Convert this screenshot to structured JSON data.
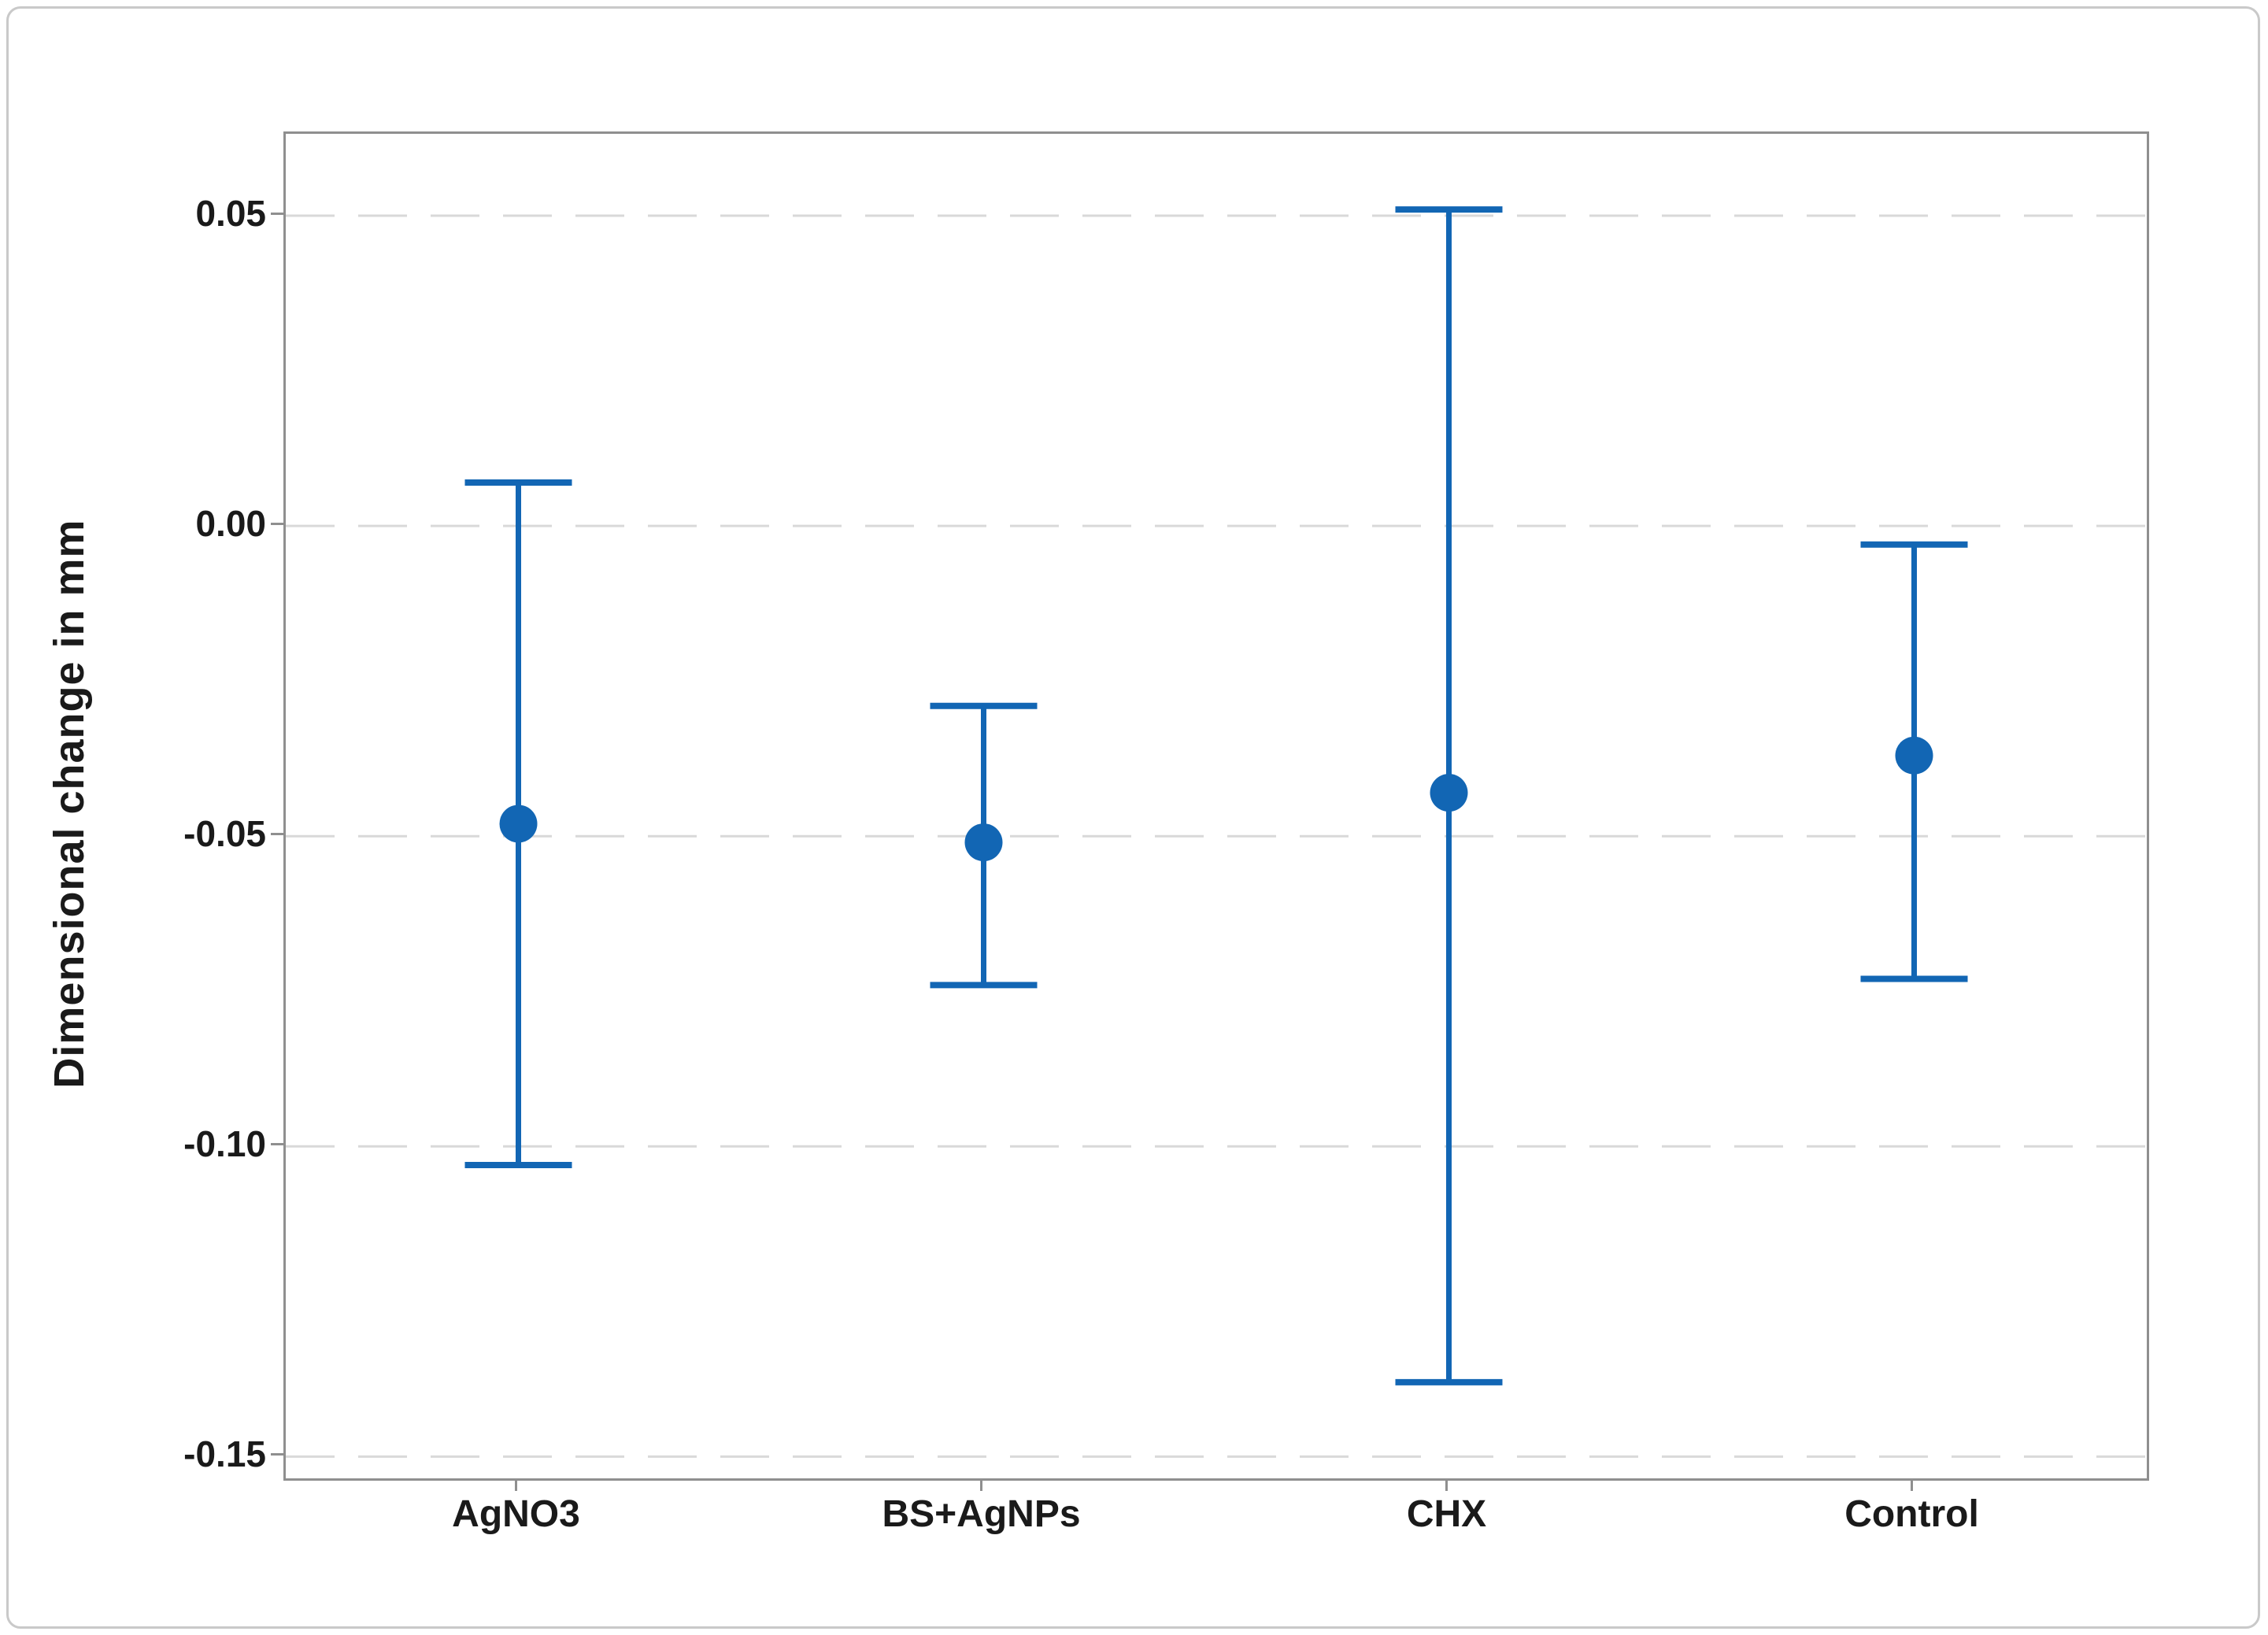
{
  "figure": {
    "colors": {
      "series": "#1266b4",
      "gridline": "#d9d9d9",
      "frame": "#8f8f8f",
      "text": "#1a1a1a",
      "outer_border": "#c9c9c9"
    }
  },
  "chart_data": {
    "type": "scatter",
    "subtype": "interval-plot-with-error-bars",
    "title": "",
    "xlabel": "",
    "ylabel": "Dimensional change in mm",
    "categories": [
      "AgNO3",
      "BS+AgNPs",
      "CHX",
      "Control"
    ],
    "means": [
      -0.048,
      -0.051,
      -0.043,
      -0.037
    ],
    "ci_high": [
      0.007,
      -0.029,
      0.051,
      -0.003
    ],
    "ci_low": [
      -0.103,
      -0.074,
      -0.138,
      -0.073
    ],
    "ylim": [
      -0.1535,
      0.0632
    ],
    "yticks": [
      0.05,
      0.0,
      -0.05,
      -0.1,
      -0.15
    ],
    "ytick_labels": [
      "0.05",
      "0.00",
      "-0.05",
      "-0.10",
      "-0.15"
    ],
    "grid": "horizontal dashed gridlines at each y tick",
    "legend": "none"
  }
}
